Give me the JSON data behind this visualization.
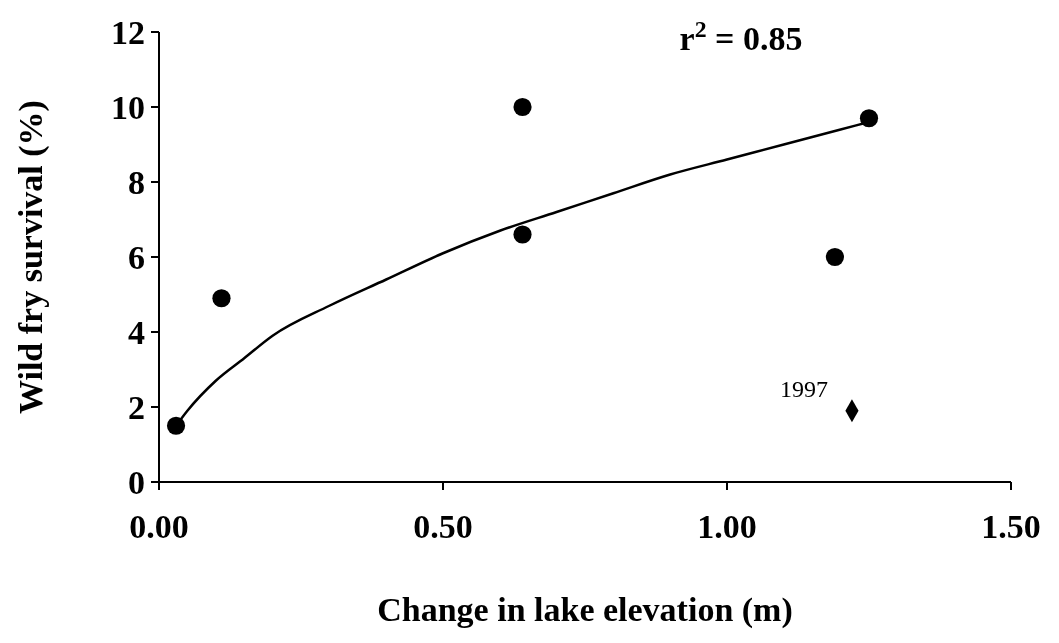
{
  "chart_data": {
    "type": "scatter",
    "xlabel": "Change in lake elevation (m)",
    "ylabel": "Wild fry survival (%)",
    "xlim": [
      0,
      1.5
    ],
    "ylim": [
      0,
      12
    ],
    "xticks": [
      {
        "value": 0,
        "label": "0.00"
      },
      {
        "value": 0.5,
        "label": "0.50"
      },
      {
        "value": 1,
        "label": "1.00"
      },
      {
        "value": 1.5,
        "label": "1.50"
      }
    ],
    "yticks": [
      0,
      2,
      4,
      6,
      8,
      10,
      12
    ],
    "grid": false,
    "series": [
      {
        "color": "#000000",
        "marker": "circle",
        "x": [
          0.03,
          0.11,
          0.64,
          0.64,
          1.19,
          1.25
        ],
        "values": [
          1.5,
          4.9,
          10.0,
          6.6,
          6.0,
          9.7
        ]
      },
      {
        "color": "#000000",
        "marker": "diamond",
        "x": [
          1.22
        ],
        "values": [
          1.9
        ]
      },
      {
        "type": "line",
        "color": "#000000",
        "line_style": "solid",
        "x": [
          0.03,
          0.05,
          0.1,
          0.15,
          0.2,
          0.3,
          0.4,
          0.5,
          0.6,
          0.7,
          0.8,
          0.9,
          1.0,
          1.1,
          1.2,
          1.25
        ],
        "values": [
          1.5,
          1.9,
          2.7,
          3.3,
          3.9,
          4.7,
          5.4,
          6.1,
          6.7,
          7.2,
          7.7,
          8.2,
          8.6,
          9.0,
          9.4,
          9.6
        ]
      }
    ],
    "annotations": [
      {
        "text": "1997",
        "x": 1.22,
        "y": 1.9
      },
      "r$^{2}$ = 0.85"
    ]
  }
}
